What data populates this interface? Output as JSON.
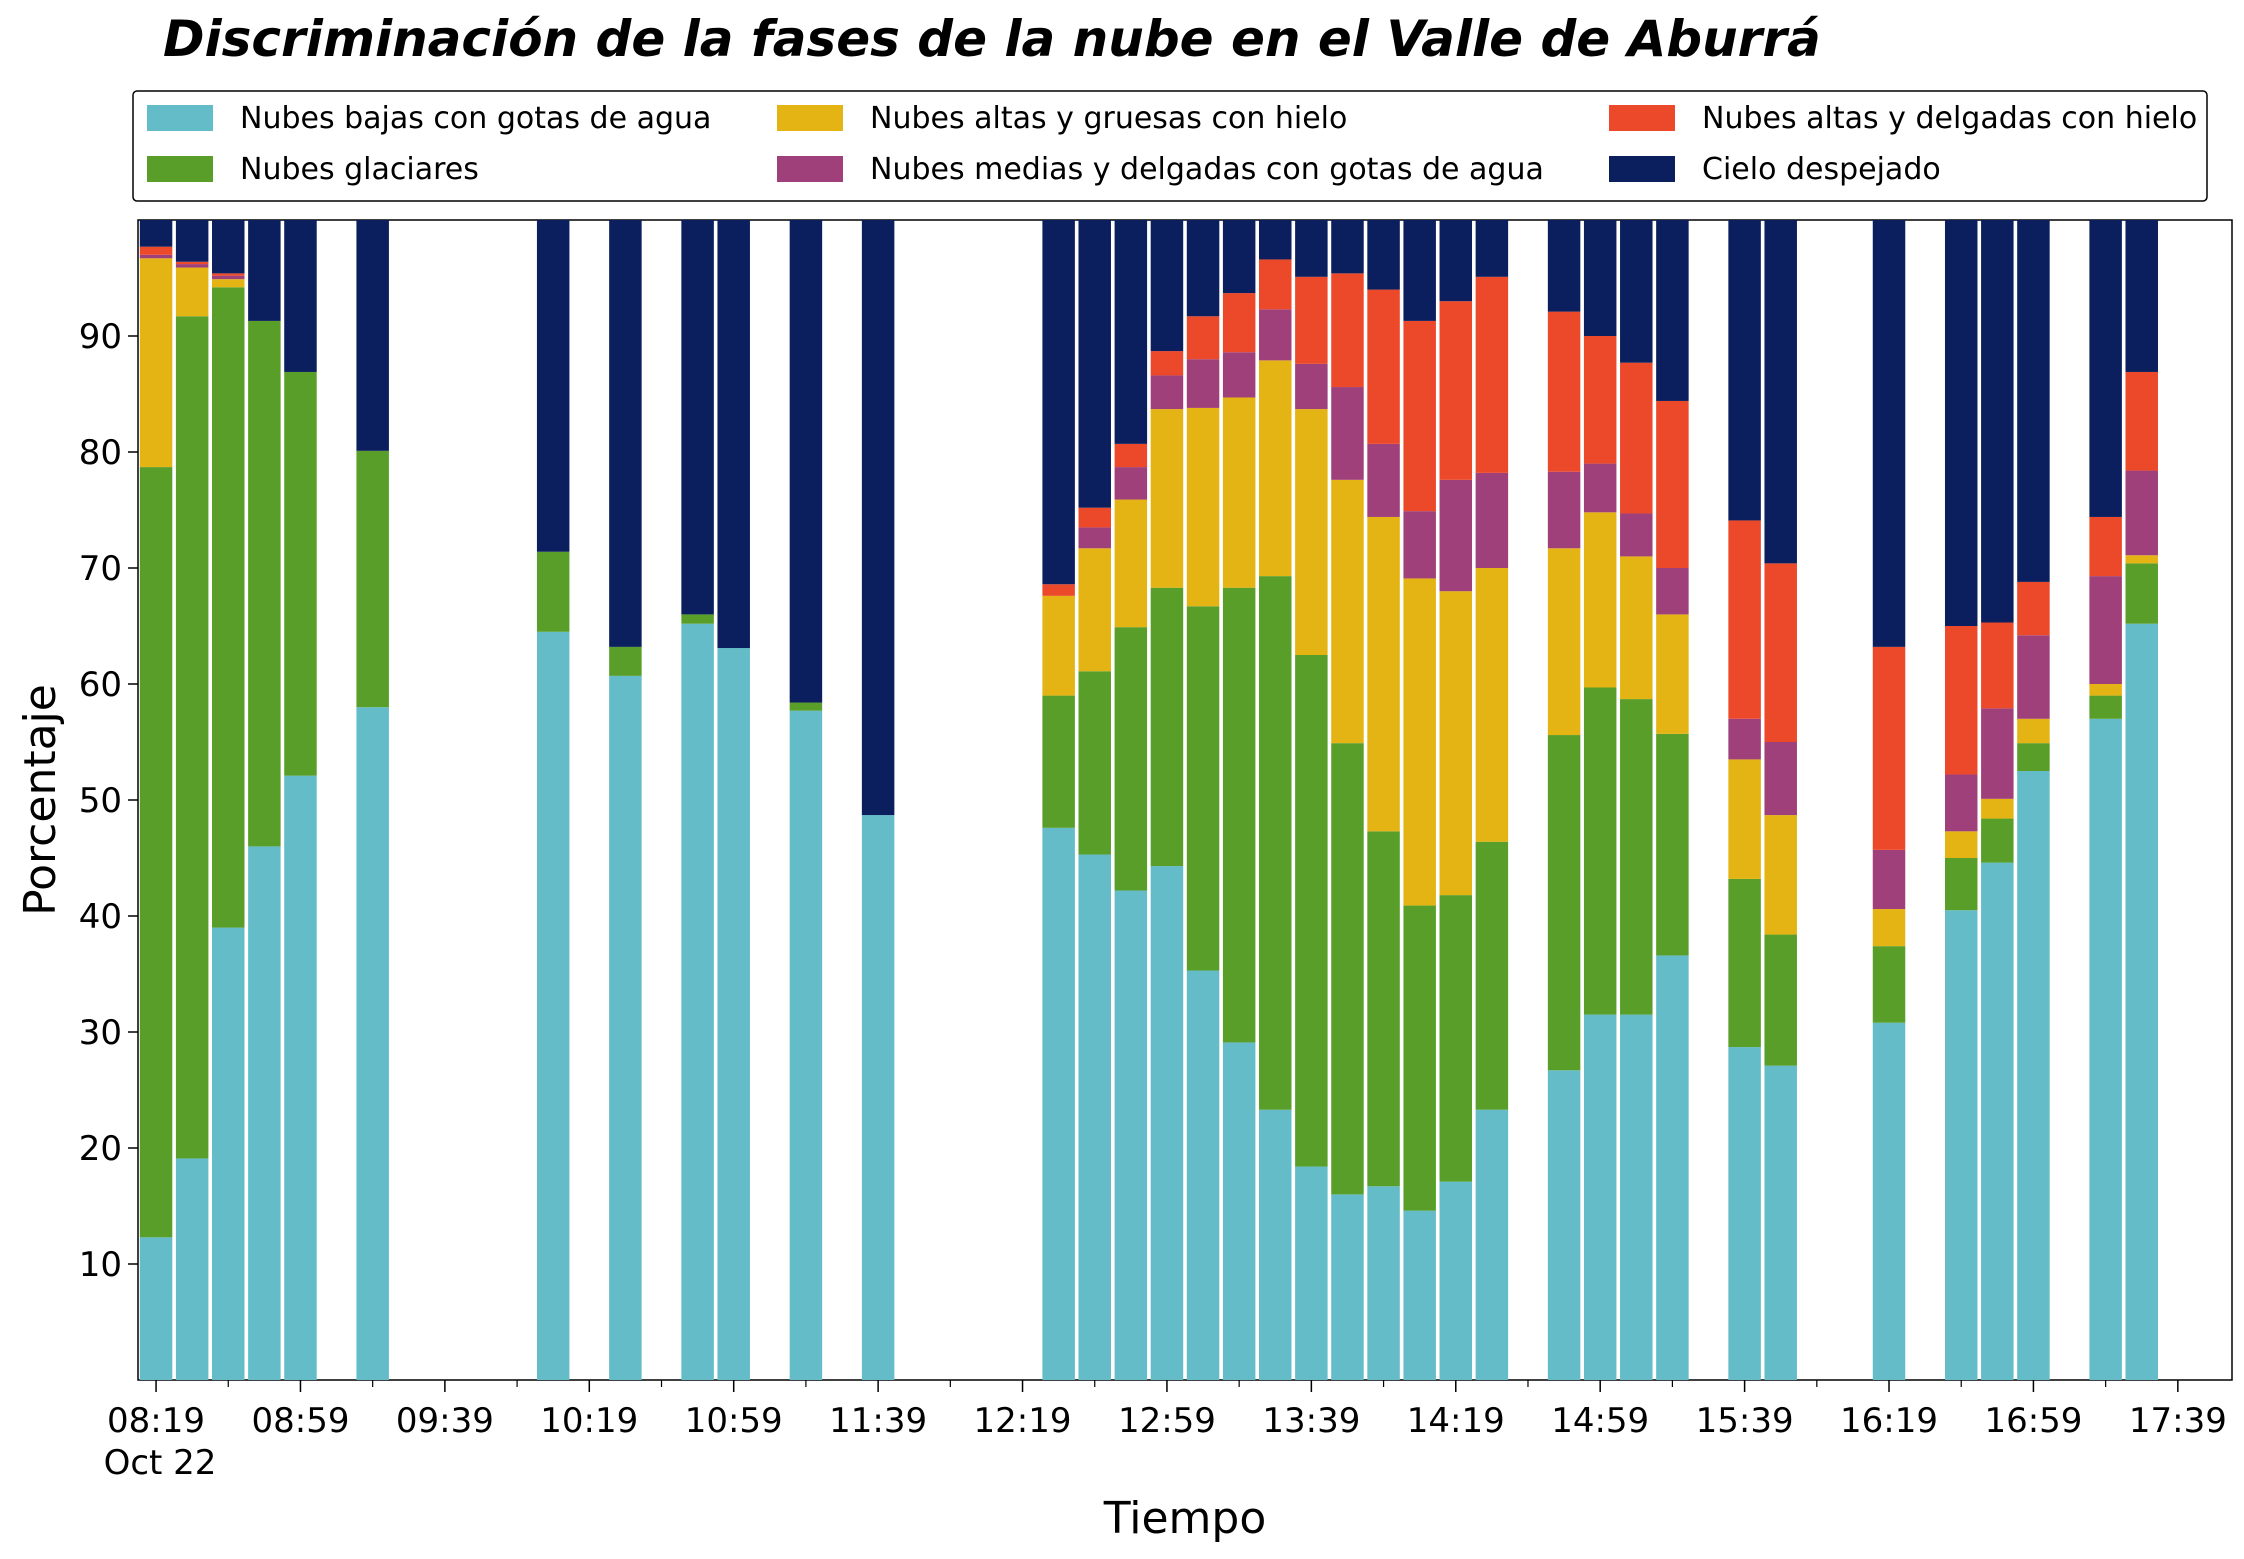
{
  "chart_data": {
    "type": "bar",
    "stacked": true,
    "title": "Discriminación de la fases de la nube en el Valle de Aburrá",
    "xlabel": "Tiempo",
    "ylabel": "Porcentaje",
    "ylim": [
      0,
      100
    ],
    "yticks": [
      10,
      20,
      30,
      40,
      50,
      60,
      70,
      80,
      90
    ],
    "x_tick_labels": [
      "08:19",
      "08:59",
      "09:39",
      "10:19",
      "10:59",
      "11:39",
      "12:19",
      "12:59",
      "13:39",
      "14:19",
      "14:59",
      "15:39",
      "16:19",
      "16:59",
      "17:39"
    ],
    "x_date_label": "Oct 22",
    "x_range": [
      "08:14",
      "17:54"
    ],
    "grid": false,
    "legend_position": "top, above plot",
    "series": [
      {
        "name": "Nubes bajas con gotas de agua",
        "color": "#64BCC9"
      },
      {
        "name": "Nubes glaciares",
        "color": "#5A9E2A"
      },
      {
        "name": "Nubes altas y gruesas con hielo",
        "color": "#E3B413"
      },
      {
        "name": "Nubes medias y delgadas con gotas de agua",
        "color": "#A0407A"
      },
      {
        "name": "Nubes altas y delgadas con hielo",
        "color": "#EC482A"
      },
      {
        "name": "Cielo despejado",
        "color": "#0B1E5E"
      }
    ],
    "bars": [
      {
        "time": "08:19",
        "values": [
          12.3,
          66.4,
          18.0,
          0.3,
          0.7,
          2.3
        ]
      },
      {
        "time": "08:29",
        "values": [
          19.1,
          72.6,
          4.2,
          0.3,
          0.2,
          3.6
        ]
      },
      {
        "time": "08:39",
        "values": [
          39.0,
          55.2,
          0.7,
          0.3,
          0.2,
          4.6
        ]
      },
      {
        "time": "08:49",
        "values": [
          46.0,
          45.3,
          0,
          0,
          0,
          8.7
        ]
      },
      {
        "time": "08:59",
        "values": [
          52.1,
          34.8,
          0,
          0,
          0,
          13.1
        ]
      },
      {
        "time": "09:19",
        "values": [
          58.0,
          22.1,
          0,
          0,
          0,
          19.9
        ]
      },
      {
        "time": "10:09",
        "values": [
          64.5,
          6.9,
          0,
          0,
          0,
          28.6
        ]
      },
      {
        "time": "10:29",
        "values": [
          60.7,
          2.5,
          0,
          0,
          0,
          36.8
        ]
      },
      {
        "time": "10:49",
        "values": [
          65.2,
          0.8,
          0,
          0,
          0,
          34.0
        ]
      },
      {
        "time": "10:59",
        "values": [
          63.1,
          0,
          0,
          0,
          0,
          36.9
        ]
      },
      {
        "time": "11:19",
        "values": [
          57.7,
          0.7,
          0,
          0,
          0,
          41.6
        ]
      },
      {
        "time": "11:39",
        "values": [
          48.7,
          0,
          0,
          0,
          0,
          51.3
        ]
      },
      {
        "time": "12:29",
        "values": [
          47.6,
          11.4,
          8.6,
          0,
          1.0,
          31.4
        ]
      },
      {
        "time": "12:39",
        "values": [
          45.3,
          15.8,
          10.6,
          1.8,
          1.7,
          24.8
        ]
      },
      {
        "time": "12:49",
        "values": [
          42.2,
          22.7,
          11.0,
          2.8,
          2.0,
          19.3
        ]
      },
      {
        "time": "12:59",
        "values": [
          44.3,
          24.0,
          15.4,
          2.9,
          2.1,
          11.3
        ]
      },
      {
        "time": "13:09",
        "values": [
          35.3,
          31.4,
          17.1,
          4.2,
          3.7,
          8.3
        ]
      },
      {
        "time": "13:19",
        "values": [
          29.1,
          39.2,
          16.4,
          3.9,
          5.1,
          6.3
        ]
      },
      {
        "time": "13:29",
        "values": [
          23.3,
          46.0,
          18.6,
          4.4,
          4.3,
          3.4
        ]
      },
      {
        "time": "13:39",
        "values": [
          18.4,
          44.1,
          21.2,
          3.9,
          7.5,
          4.9
        ]
      },
      {
        "time": "13:49",
        "values": [
          16.0,
          38.9,
          22.7,
          8.0,
          9.8,
          4.6
        ]
      },
      {
        "time": "13:59",
        "values": [
          16.7,
          30.6,
          27.1,
          6.3,
          13.3,
          6.0
        ]
      },
      {
        "time": "14:09",
        "values": [
          14.6,
          26.3,
          28.2,
          5.8,
          16.4,
          8.7
        ]
      },
      {
        "time": "14:19",
        "values": [
          17.1,
          24.7,
          26.2,
          9.6,
          15.4,
          7.0
        ]
      },
      {
        "time": "14:29",
        "values": [
          23.3,
          23.1,
          23.6,
          8.2,
          16.9,
          4.9
        ]
      },
      {
        "time": "14:49",
        "values": [
          26.7,
          28.9,
          16.1,
          6.6,
          13.8,
          7.9
        ]
      },
      {
        "time": "14:59",
        "values": [
          31.5,
          28.2,
          15.1,
          4.2,
          11.0,
          10.0
        ]
      },
      {
        "time": "15:09",
        "values": [
          31.5,
          27.2,
          12.3,
          3.7,
          13.0,
          12.3
        ]
      },
      {
        "time": "15:19",
        "values": [
          36.6,
          19.1,
          10.3,
          4.0,
          14.4,
          15.6
        ]
      },
      {
        "time": "15:39",
        "values": [
          28.7,
          14.5,
          10.3,
          3.5,
          17.1,
          25.9
        ]
      },
      {
        "time": "15:49",
        "values": [
          27.1,
          11.3,
          10.3,
          6.3,
          15.4,
          29.6
        ]
      },
      {
        "time": "16:19",
        "values": [
          30.8,
          6.6,
          3.2,
          5.1,
          17.5,
          36.8
        ]
      },
      {
        "time": "16:39",
        "values": [
          40.5,
          4.5,
          2.3,
          4.9,
          12.8,
          35.0
        ]
      },
      {
        "time": "16:49",
        "values": [
          44.6,
          3.8,
          1.7,
          7.8,
          7.4,
          34.7
        ]
      },
      {
        "time": "16:59",
        "values": [
          52.5,
          2.4,
          2.1,
          7.2,
          4.6,
          31.2
        ]
      },
      {
        "time": "17:19",
        "values": [
          57.0,
          2.0,
          1.0,
          9.3,
          5.1,
          25.6
        ]
      },
      {
        "time": "17:29",
        "values": [
          65.2,
          5.2,
          0.7,
          7.3,
          8.5,
          13.1
        ]
      }
    ]
  }
}
